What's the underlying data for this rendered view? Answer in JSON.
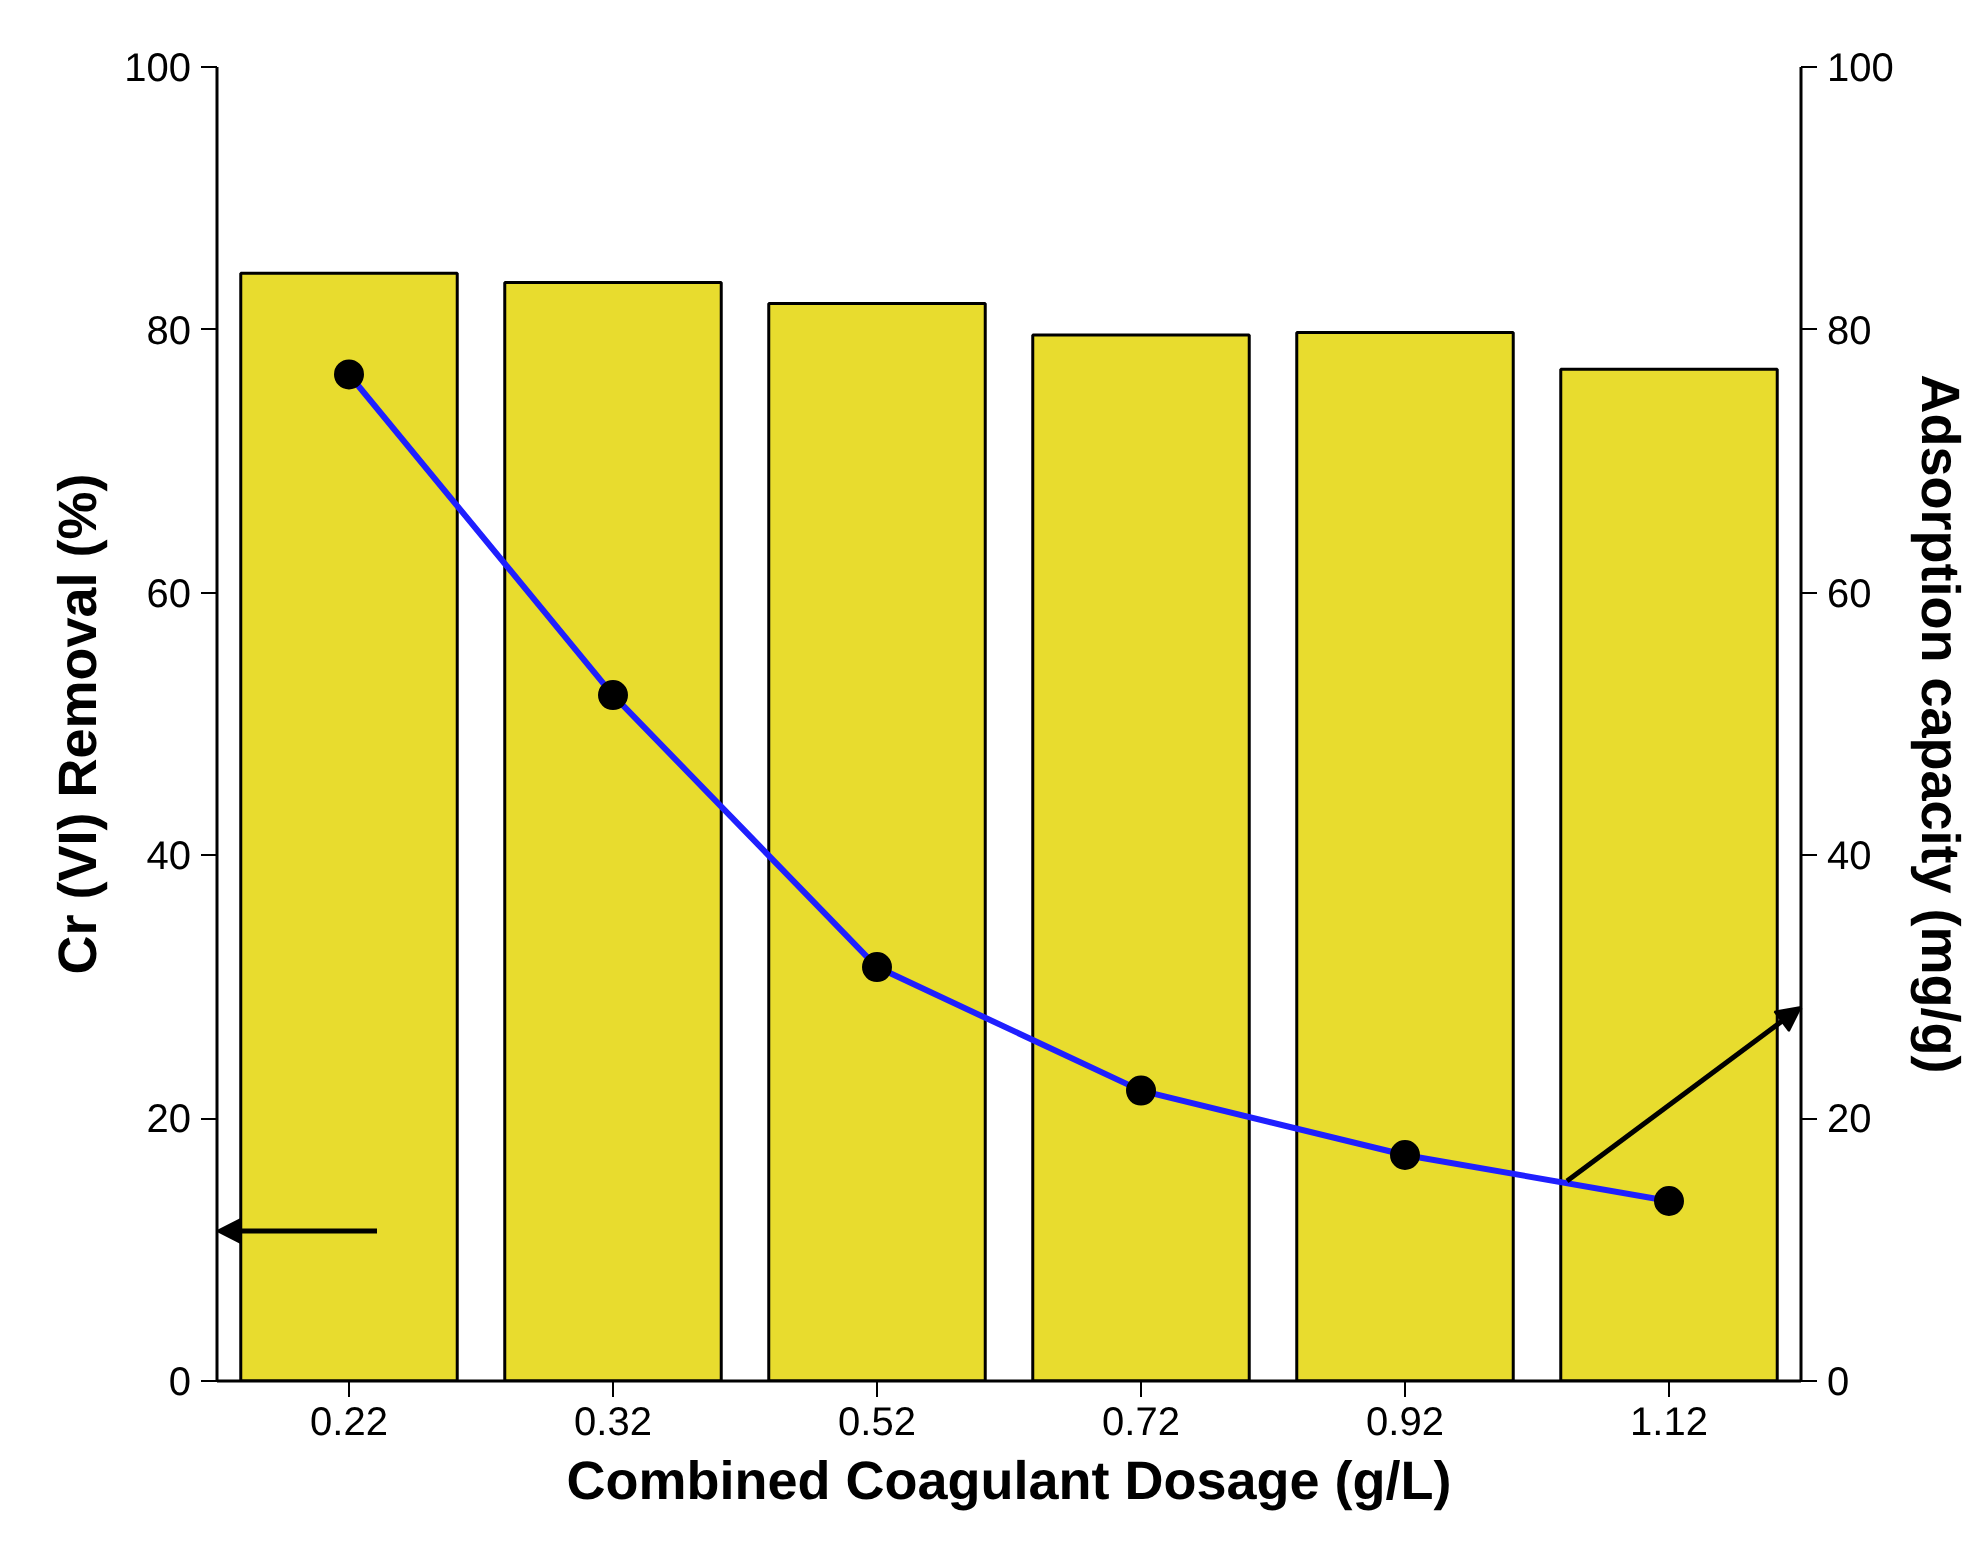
{
  "chart_data": {
    "type": "bar",
    "xlabel": "Combined Coagulant Dosage (g/L)",
    "ylabel": "Cr (VI) Removal (%)",
    "y2label": "Adsorption capacity (mg/g)",
    "categories": [
      "0.22",
      "0.32",
      "0.52",
      "0.72",
      "0.92",
      "1.12"
    ],
    "series": [
      {
        "color": "#e8dc2e",
        "values": [
          84.3,
          83.6,
          82.0,
          79.6,
          79.8,
          77.0
        ]
      },
      {
        "type": "line",
        "axis": "y2",
        "color": "#1f1fff",
        "marker": "circle",
        "values": [
          76.6,
          52.2,
          31.5,
          22.1,
          17.2,
          13.7
        ]
      }
    ],
    "ylim": [
      0,
      100
    ],
    "yticks": [
      0,
      20,
      40,
      60,
      80,
      100
    ],
    "y2lim": [
      0,
      100
    ],
    "y2ticks": [
      0,
      20,
      40,
      60,
      80,
      100
    ],
    "grid": false
  }
}
